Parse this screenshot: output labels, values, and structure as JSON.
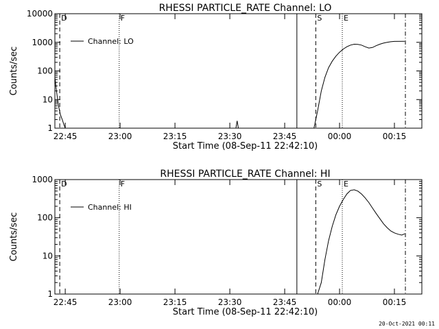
{
  "footer_date": "20-Oct-2021 00:11",
  "chart_data": [
    {
      "type": "line",
      "title": "RHESSI PARTICLE_RATE Channel: LO",
      "xlabel": "Start Time (08-Sep-11 22:42:10)",
      "ylabel": "Counts/sec",
      "yscale": "log",
      "ylim": [
        1,
        10000
      ],
      "xlim": [
        "22:42:10",
        "00:22:30"
      ],
      "x_ticks": [
        "22:45",
        "23:00",
        "23:15",
        "23:30",
        "23:45",
        "00:00",
        "00:15"
      ],
      "y_ticks": [
        "1",
        "10",
        "100",
        "1000",
        "10000"
      ],
      "legend": {
        "entries": [
          "Channel: LO"
        ],
        "position": "top-left"
      },
      "markers": [
        {
          "label": "D",
          "time": "22:43:30",
          "style": "dashed"
        },
        {
          "label": "F",
          "time": "22:59:45",
          "style": "dotted"
        },
        {
          "label": "",
          "time": "23:48:20",
          "style": "solid"
        },
        {
          "label": "S",
          "time": "23:53:30",
          "style": "dashed"
        },
        {
          "label": "E",
          "time": "00:00:45",
          "style": "dotted"
        },
        {
          "label": "",
          "time": "00:18:00",
          "style": "dashdot"
        }
      ],
      "series": [
        {
          "points": [
            [
              "22:42:10",
              60
            ],
            [
              "22:42:30",
              25
            ],
            [
              "22:42:50",
              12
            ],
            [
              "22:43:10",
              6
            ],
            [
              "22:43:40",
              3
            ],
            [
              "22:44:10",
              2
            ],
            [
              "22:44:40",
              1.3
            ],
            [
              "22:45:00",
              1
            ],
            null,
            [
              "23:31:40",
              1
            ],
            [
              "23:32:00",
              1.8
            ],
            [
              "23:32:20",
              1
            ],
            null,
            [
              "23:53:00",
              1
            ],
            [
              "23:54:00",
              4
            ],
            [
              "23:55:00",
              20
            ],
            [
              "23:56:00",
              60
            ],
            [
              "23:57:00",
              130
            ],
            [
              "23:58:00",
              220
            ],
            [
              "23:59:00",
              330
            ],
            [
              "00:00:00",
              450
            ],
            [
              "00:01:00",
              580
            ],
            [
              "00:02:00",
              700
            ],
            [
              "00:03:00",
              800
            ],
            [
              "00:04:00",
              860
            ],
            [
              "00:05:00",
              850
            ],
            [
              "00:06:00",
              800
            ],
            [
              "00:07:00",
              700
            ],
            [
              "00:08:00",
              630
            ],
            [
              "00:09:00",
              660
            ],
            [
              "00:10:00",
              760
            ],
            [
              "00:11:00",
              860
            ],
            [
              "00:12:00",
              940
            ],
            [
              "00:13:00",
              1000
            ],
            [
              "00:14:00",
              1050
            ],
            [
              "00:15:00",
              1080
            ],
            [
              "00:17:50",
              1090
            ]
          ]
        }
      ]
    },
    {
      "type": "line",
      "title": "RHESSI PARTICLE_RATE Channel: HI",
      "xlabel": "Start Time (08-Sep-11 22:42:10)",
      "ylabel": "Counts/sec",
      "yscale": "log",
      "ylim": [
        1,
        1000
      ],
      "xlim": [
        "22:42:10",
        "00:22:30"
      ],
      "x_ticks": [
        "22:45",
        "23:00",
        "23:15",
        "23:30",
        "23:45",
        "00:00",
        "00:15"
      ],
      "y_ticks": [
        "1",
        "10",
        "100",
        "1000"
      ],
      "legend": {
        "entries": [
          "Channel: HI"
        ],
        "position": "top-left"
      },
      "markers": [
        {
          "label": "D",
          "time": "22:43:30",
          "style": "dashed"
        },
        {
          "label": "F",
          "time": "22:59:45",
          "style": "dotted"
        },
        {
          "label": "",
          "time": "23:48:20",
          "style": "solid"
        },
        {
          "label": "S",
          "time": "23:53:30",
          "style": "dashed"
        },
        {
          "label": "E",
          "time": "00:00:45",
          "style": "dotted"
        },
        {
          "label": "",
          "time": "00:18:00",
          "style": "dashdot"
        }
      ],
      "series": [
        {
          "points": [
            [
              "23:54:00",
              1
            ],
            [
              "23:55:00",
              2
            ],
            [
              "23:56:00",
              8
            ],
            [
              "23:57:00",
              25
            ],
            [
              "23:58:00",
              60
            ],
            [
              "23:59:00",
              120
            ],
            [
              "00:00:00",
              200
            ],
            [
              "00:01:00",
              300
            ],
            [
              "00:02:00",
              420
            ],
            [
              "00:03:00",
              520
            ],
            [
              "00:04:00",
              540
            ],
            [
              "00:05:00",
              500
            ],
            [
              "00:06:00",
              420
            ],
            [
              "00:07:00",
              330
            ],
            [
              "00:08:00",
              250
            ],
            [
              "00:09:00",
              180
            ],
            [
              "00:10:00",
              130
            ],
            [
              "00:11:00",
              95
            ],
            [
              "00:12:00",
              70
            ],
            [
              "00:13:00",
              55
            ],
            [
              "00:14:00",
              45
            ],
            [
              "00:15:00",
              40
            ],
            [
              "00:16:00",
              37
            ],
            [
              "00:17:00",
              35
            ],
            [
              "00:17:50",
              38
            ]
          ]
        }
      ]
    }
  ]
}
